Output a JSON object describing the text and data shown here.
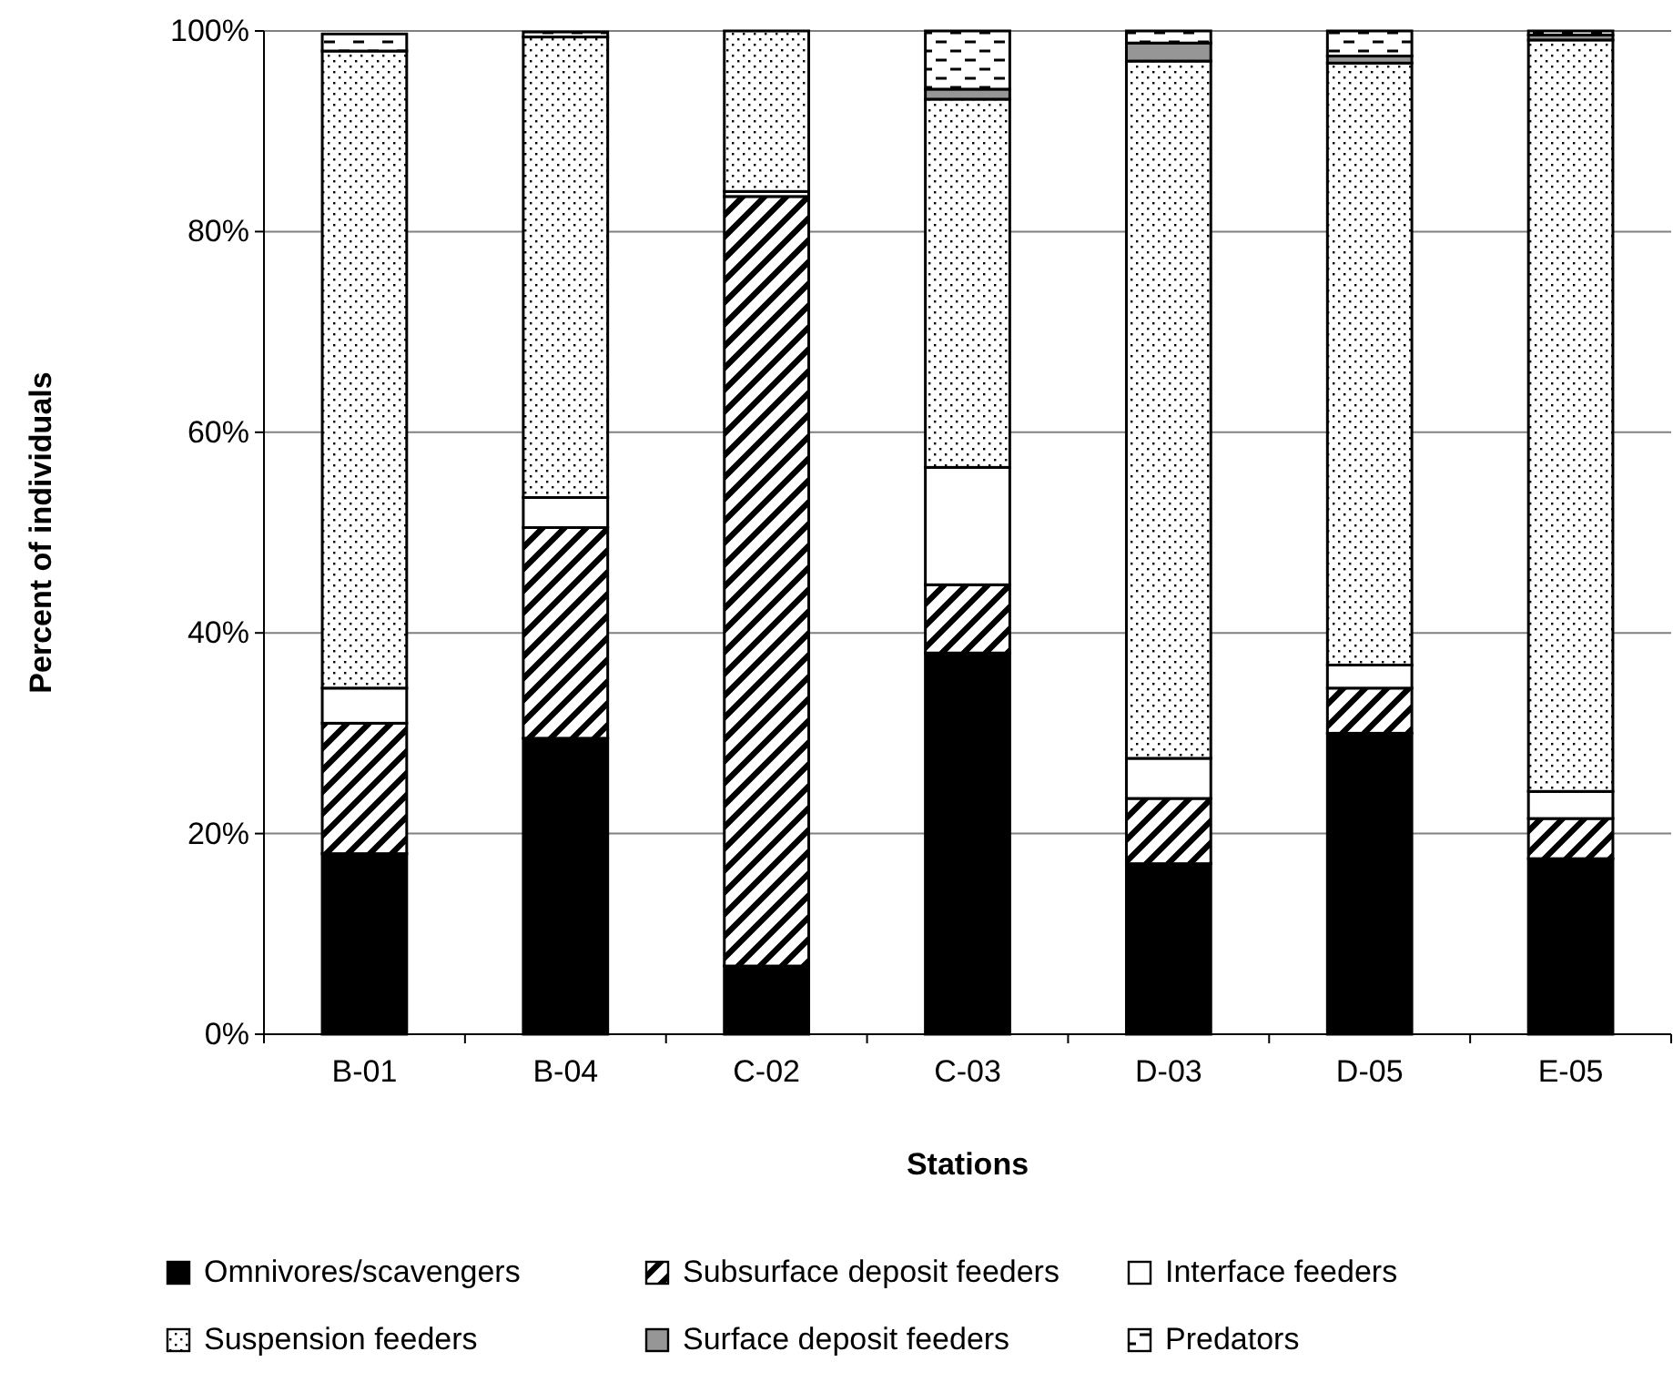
{
  "chart_data": {
    "type": "bar",
    "stacked": true,
    "xlabel": "Stations",
    "ylabel": "Percent of individuals",
    "categories": [
      "B-01",
      "B-04",
      "C-02",
      "C-03",
      "D-03",
      "D-05",
      "E-05"
    ],
    "series": [
      {
        "name": "Omnivores/scavengers",
        "color": "#000000",
        "values": [
          18,
          29.5,
          6.8,
          38,
          17,
          30,
          17.5
        ]
      },
      {
        "name": "Subsurface deposit feeders",
        "color": "#000000",
        "values": [
          13,
          21,
          76.7,
          6.8,
          6.5,
          4.5,
          4
        ]
      },
      {
        "name": "Interface feeders",
        "color": "#ffffff",
        "values": [
          3.5,
          3,
          0.5,
          11.7,
          4,
          2.3,
          2.7
        ]
      },
      {
        "name": "Suspension feeders",
        "color": "#000000",
        "values": [
          63.5,
          45.9,
          16,
          36.7,
          69.5,
          60,
          74.9
        ]
      },
      {
        "name": "Surface deposit feeders",
        "color": "#969696",
        "values": [
          null,
          null,
          0,
          1,
          1.8,
          0.7,
          0.5
        ]
      },
      {
        "name": "Predators",
        "color": "#000000",
        "values": [
          1.7,
          0.5,
          0,
          5.8,
          1.2,
          2.5,
          0.4
        ]
      }
    ],
    "ylim": [
      0,
      100
    ],
    "yticks": [
      {
        "value": 0,
        "label": "0%"
      },
      {
        "value": 20,
        "label": "20%"
      },
      {
        "value": 40,
        "label": "40%"
      },
      {
        "value": 60,
        "label": "60%"
      },
      {
        "value": 80,
        "label": "80%"
      },
      {
        "value": 100,
        "label": "100%"
      }
    ],
    "grid": "y",
    "legend": "bottom"
  }
}
